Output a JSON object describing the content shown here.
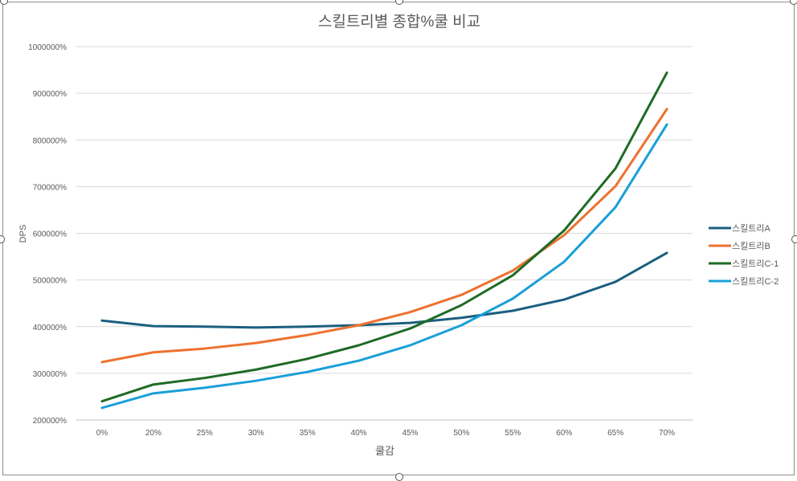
{
  "chart_data": {
    "type": "line",
    "title": "스킬트리별 종합%쿨 비교",
    "xlabel": "쿨감",
    "ylabel": "DPS",
    "categories": [
      "0%",
      "20%",
      "25%",
      "30%",
      "35%",
      "40%",
      "45%",
      "50%",
      "55%",
      "60%",
      "65%",
      "70%"
    ],
    "ylim": [
      200000,
      1000000
    ],
    "yticks": [
      200000,
      300000,
      400000,
      500000,
      600000,
      700000,
      800000,
      900000,
      1000000
    ],
    "ytick_labels": [
      "200000%",
      "300000%",
      "400000%",
      "500000%",
      "600000%",
      "700000%",
      "800000%",
      "900000%",
      "1000000%"
    ],
    "grid": true,
    "legend_position": "right",
    "series": [
      {
        "name": "스킬트리A",
        "color": "#1b5f80",
        "values": [
          413000,
          401000,
          400000,
          398000,
          400000,
          403000,
          408000,
          419000,
          434000,
          458000,
          496000,
          558000
        ]
      },
      {
        "name": "스킬트리B",
        "color": "#ed7130",
        "values": [
          324000,
          345000,
          353000,
          365000,
          382000,
          403000,
          431000,
          468000,
          520000,
          596000,
          701000,
          866000
        ]
      },
      {
        "name": "스킬트리C-1",
        "color": "#1e6b25",
        "values": [
          240000,
          276000,
          290000,
          308000,
          331000,
          360000,
          396000,
          446000,
          510000,
          606000,
          739000,
          944000
        ]
      },
      {
        "name": "스킬트리C-2",
        "color": "#1a9fd8",
        "values": [
          226000,
          257000,
          269000,
          284000,
          303000,
          327000,
          360000,
          403000,
          460000,
          539000,
          656000,
          833000
        ]
      }
    ]
  }
}
